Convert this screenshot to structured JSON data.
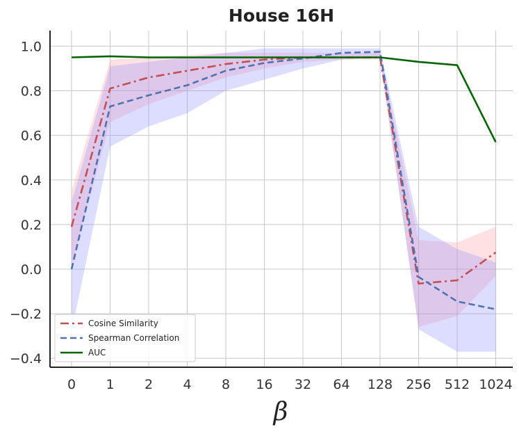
{
  "chart_data": {
    "type": "line",
    "title": "House 16H",
    "xlabel": "β",
    "ylabel": "",
    "categories": [
      "0",
      "1",
      "2",
      "4",
      "8",
      "16",
      "32",
      "64",
      "128",
      "256",
      "512",
      "1024"
    ],
    "ylim": [
      -0.44,
      1.07
    ],
    "yticks": [
      -0.4,
      -0.2,
      0.0,
      0.2,
      0.4,
      0.6,
      0.8,
      1.0
    ],
    "ytick_labels": [
      "−0.4",
      "−0.2",
      "0.0",
      "0.2",
      "0.4",
      "0.6",
      "0.8",
      "1.0"
    ],
    "grid": true,
    "legend_position": "lower-left",
    "series": [
      {
        "name": "Cosine Similarity",
        "color": "#c44e52",
        "band_color": "#ff9aa2",
        "dash": "dash-dot",
        "values": [
          0.19,
          0.81,
          0.86,
          0.89,
          0.92,
          0.94,
          0.95,
          0.95,
          0.95,
          -0.065,
          -0.05,
          0.075
        ],
        "lower": [
          0.02,
          0.66,
          0.74,
          0.8,
          0.86,
          0.9,
          0.93,
          0.94,
          0.94,
          -0.26,
          -0.21,
          -0.03
        ],
        "upper": [
          0.35,
          0.94,
          0.95,
          0.96,
          0.97,
          0.97,
          0.97,
          0.97,
          0.97,
          0.13,
          0.12,
          0.19
        ]
      },
      {
        "name": "Spearman Correlation",
        "color": "#4c72b0",
        "band_color": "#8f8fff",
        "dash": "dashed",
        "values": [
          0.0,
          0.73,
          0.78,
          0.825,
          0.89,
          0.925,
          0.945,
          0.97,
          0.975,
          -0.035,
          -0.145,
          -0.18
        ],
        "lower": [
          -0.28,
          0.55,
          0.64,
          0.7,
          0.8,
          0.85,
          0.9,
          0.94,
          0.95,
          -0.27,
          -0.37,
          -0.37
        ],
        "upper": [
          0.3,
          0.91,
          0.93,
          0.95,
          0.97,
          0.99,
          0.99,
          0.99,
          0.99,
          0.19,
          0.09,
          0.03
        ]
      },
      {
        "name": "AUC",
        "color": "#006400",
        "dash": "solid",
        "values": [
          0.95,
          0.955,
          0.95,
          0.95,
          0.95,
          0.95,
          0.95,
          0.95,
          0.95,
          0.93,
          0.915,
          0.57
        ]
      }
    ]
  }
}
